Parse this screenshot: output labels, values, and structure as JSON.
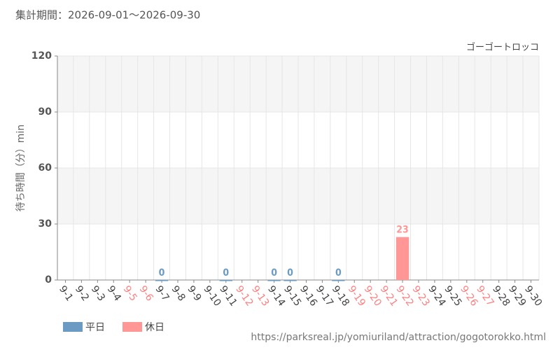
{
  "chart_data": {
    "type": "bar",
    "title": "集計期間：2026-09-01～2026-09-30",
    "subtitle": "ゴーゴートロッコ",
    "y_label": "待ち時間（分）min",
    "source": "https://parksreal.jp/yomiuriland/attraction/gogotorokko.html",
    "categories": [
      "9-1",
      "9-2",
      "9-3",
      "9-4",
      "9-5",
      "9-6",
      "9-7",
      "9-8",
      "9-9",
      "9-10",
      "9-11",
      "9-12",
      "9-13",
      "9-14",
      "9-15",
      "9-16",
      "9-17",
      "9-18",
      "9-19",
      "9-20",
      "9-21",
      "9-22",
      "9-23",
      "9-24",
      "9-25",
      "9-26",
      "9-27",
      "9-28",
      "9-29",
      "9-30"
    ],
    "category_colors": [
      "#444",
      "#444",
      "#444",
      "#444",
      "#ff8080",
      "#ff8080",
      "#444",
      "#444",
      "#444",
      "#444",
      "#444",
      "#ff8080",
      "#ff8080",
      "#444",
      "#444",
      "#444",
      "#444",
      "#444",
      "#ff8080",
      "#ff8080",
      "#ff8080",
      "#ff8080",
      "#ff8080",
      "#444",
      "#444",
      "#ff8080",
      "#ff8080",
      "#444",
      "#444",
      "#444"
    ],
    "series": [
      {
        "name": "平日",
        "color": "#6b9bc3",
        "values": [
          null,
          null,
          null,
          null,
          null,
          null,
          0,
          null,
          null,
          null,
          0,
          null,
          null,
          0,
          0,
          null,
          null,
          0,
          null,
          null,
          null,
          null,
          null,
          null,
          null,
          null,
          null,
          null,
          null,
          null
        ]
      },
      {
        "name": "休日",
        "color": "#ff9797",
        "values": [
          null,
          null,
          null,
          null,
          null,
          null,
          null,
          null,
          null,
          null,
          null,
          null,
          null,
          null,
          null,
          null,
          null,
          null,
          null,
          null,
          null,
          23,
          null,
          null,
          null,
          null,
          null,
          null,
          null,
          null
        ]
      }
    ],
    "ylim": [
      0,
      120
    ],
    "yticks": [
      0,
      30,
      60,
      90,
      120
    ],
    "grid": true
  }
}
